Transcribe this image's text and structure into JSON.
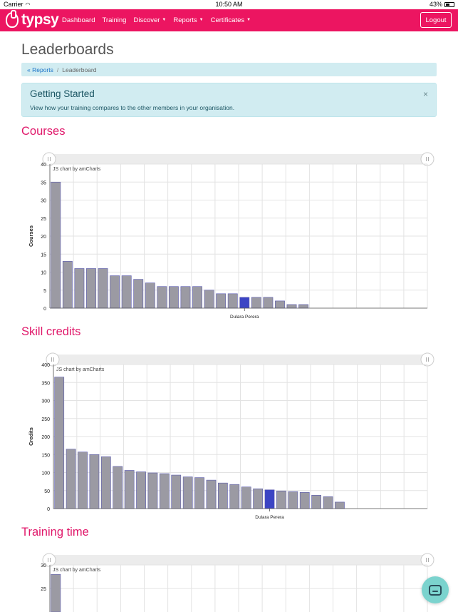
{
  "statusbar": {
    "carrier": "Carrier",
    "time": "10:50 AM",
    "battery": "43%"
  },
  "nav": {
    "logo": "typsy",
    "links": [
      "Dashboard",
      "Training",
      "Discover",
      "Reports",
      "Certificates"
    ],
    "dropdown": [
      false,
      false,
      true,
      true,
      true
    ],
    "logout": "Logout"
  },
  "page": {
    "title": "Leaderboards"
  },
  "breadcrumb": {
    "parent": "Reports",
    "separator": "/",
    "current": "Leaderboard"
  },
  "alert": {
    "title": "Getting Started",
    "text": "View how your training compares to the other members in your organisation.",
    "close": "×"
  },
  "colors": {
    "brand": "#ec1561",
    "bar": "#9b9aa3",
    "highlight": "#3b44c4"
  },
  "sections": {
    "courses": "Courses",
    "skill_credits": "Skill credits",
    "training_time": "Training time"
  },
  "chart_data": [
    {
      "type": "bar",
      "title": "",
      "ylabel": "Courses",
      "credit": "JS chart by amCharts",
      "ylim": [
        0,
        40
      ],
      "yticks": [
        0,
        5,
        10,
        15,
        20,
        25,
        30,
        35,
        40
      ],
      "values": [
        35,
        13,
        11,
        11,
        11,
        9,
        9,
        8,
        7,
        6,
        6,
        6,
        6,
        5,
        4,
        4,
        3,
        3,
        3,
        2,
        1,
        1
      ],
      "slots": 32,
      "highlight_index": 16,
      "category_label": "Dulara Perera"
    },
    {
      "type": "bar",
      "title": "",
      "ylabel": "Credits",
      "credit": "JS chart by amCharts",
      "ylim": [
        0,
        400
      ],
      "yticks": [
        0,
        50,
        100,
        150,
        200,
        250,
        300,
        350,
        400
      ],
      "values": [
        365,
        165,
        157,
        150,
        144,
        117,
        106,
        102,
        99,
        97,
        93,
        88,
        86,
        79,
        71,
        67,
        60,
        55,
        52,
        49,
        47,
        45,
        37,
        33,
        18
      ],
      "slots": 32,
      "highlight_index": 18,
      "category_label": "Dulara Perera"
    },
    {
      "type": "bar",
      "title": "",
      "ylabel": "",
      "credit": "JS chart by amCharts",
      "ylim": [
        20,
        30
      ],
      "yticks": [
        25,
        30
      ],
      "values": [
        28
      ],
      "slots": 32,
      "highlight_index": -1,
      "category_label": ""
    }
  ]
}
